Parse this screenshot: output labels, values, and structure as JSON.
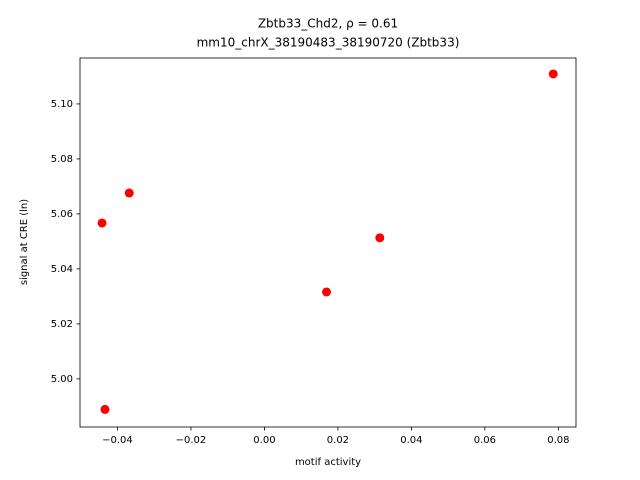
{
  "chart_data": {
    "type": "scatter",
    "title": "Zbtb33_Chd2, ρ = 0.61",
    "subtitle": "mm10_chrX_38190483_38190720 (Zbtb33)",
    "x_label": "motif activity",
    "y_label": "signal at CRE (ln)",
    "color": "#ff0000",
    "series": [
      {
        "x": [
          0.0786,
          -0.0368,
          -0.0442,
          0.0314,
          0.0169,
          -0.0434
        ],
        "values": [
          5.1109,
          5.0676,
          5.0567,
          5.0513,
          5.0316,
          4.9889
        ]
      }
    ],
    "xlim": [
      -0.0502,
      0.0848
    ],
    "ylim": [
      4.9825,
      5.1167
    ],
    "xticks": [
      {
        "value": -0.04,
        "label": "−0.04"
      },
      {
        "value": -0.02,
        "label": "−0.02"
      },
      {
        "value": 0,
        "label": "0.00"
      },
      {
        "value": 0.02,
        "label": "0.02"
      },
      {
        "value": 0.04,
        "label": "0.04"
      },
      {
        "value": 0.06,
        "label": "0.06"
      },
      {
        "value": 0.08,
        "label": "0.08"
      }
    ],
    "yticks": [
      {
        "value": 5.0,
        "label": "5.00"
      },
      {
        "value": 5.02,
        "label": "5.02"
      },
      {
        "value": 5.04,
        "label": "5.04"
      },
      {
        "value": 5.06,
        "label": "5.06"
      },
      {
        "value": 5.08,
        "label": "5.08"
      },
      {
        "value": 5.1,
        "label": "5.10"
      }
    ],
    "grid": false
  }
}
